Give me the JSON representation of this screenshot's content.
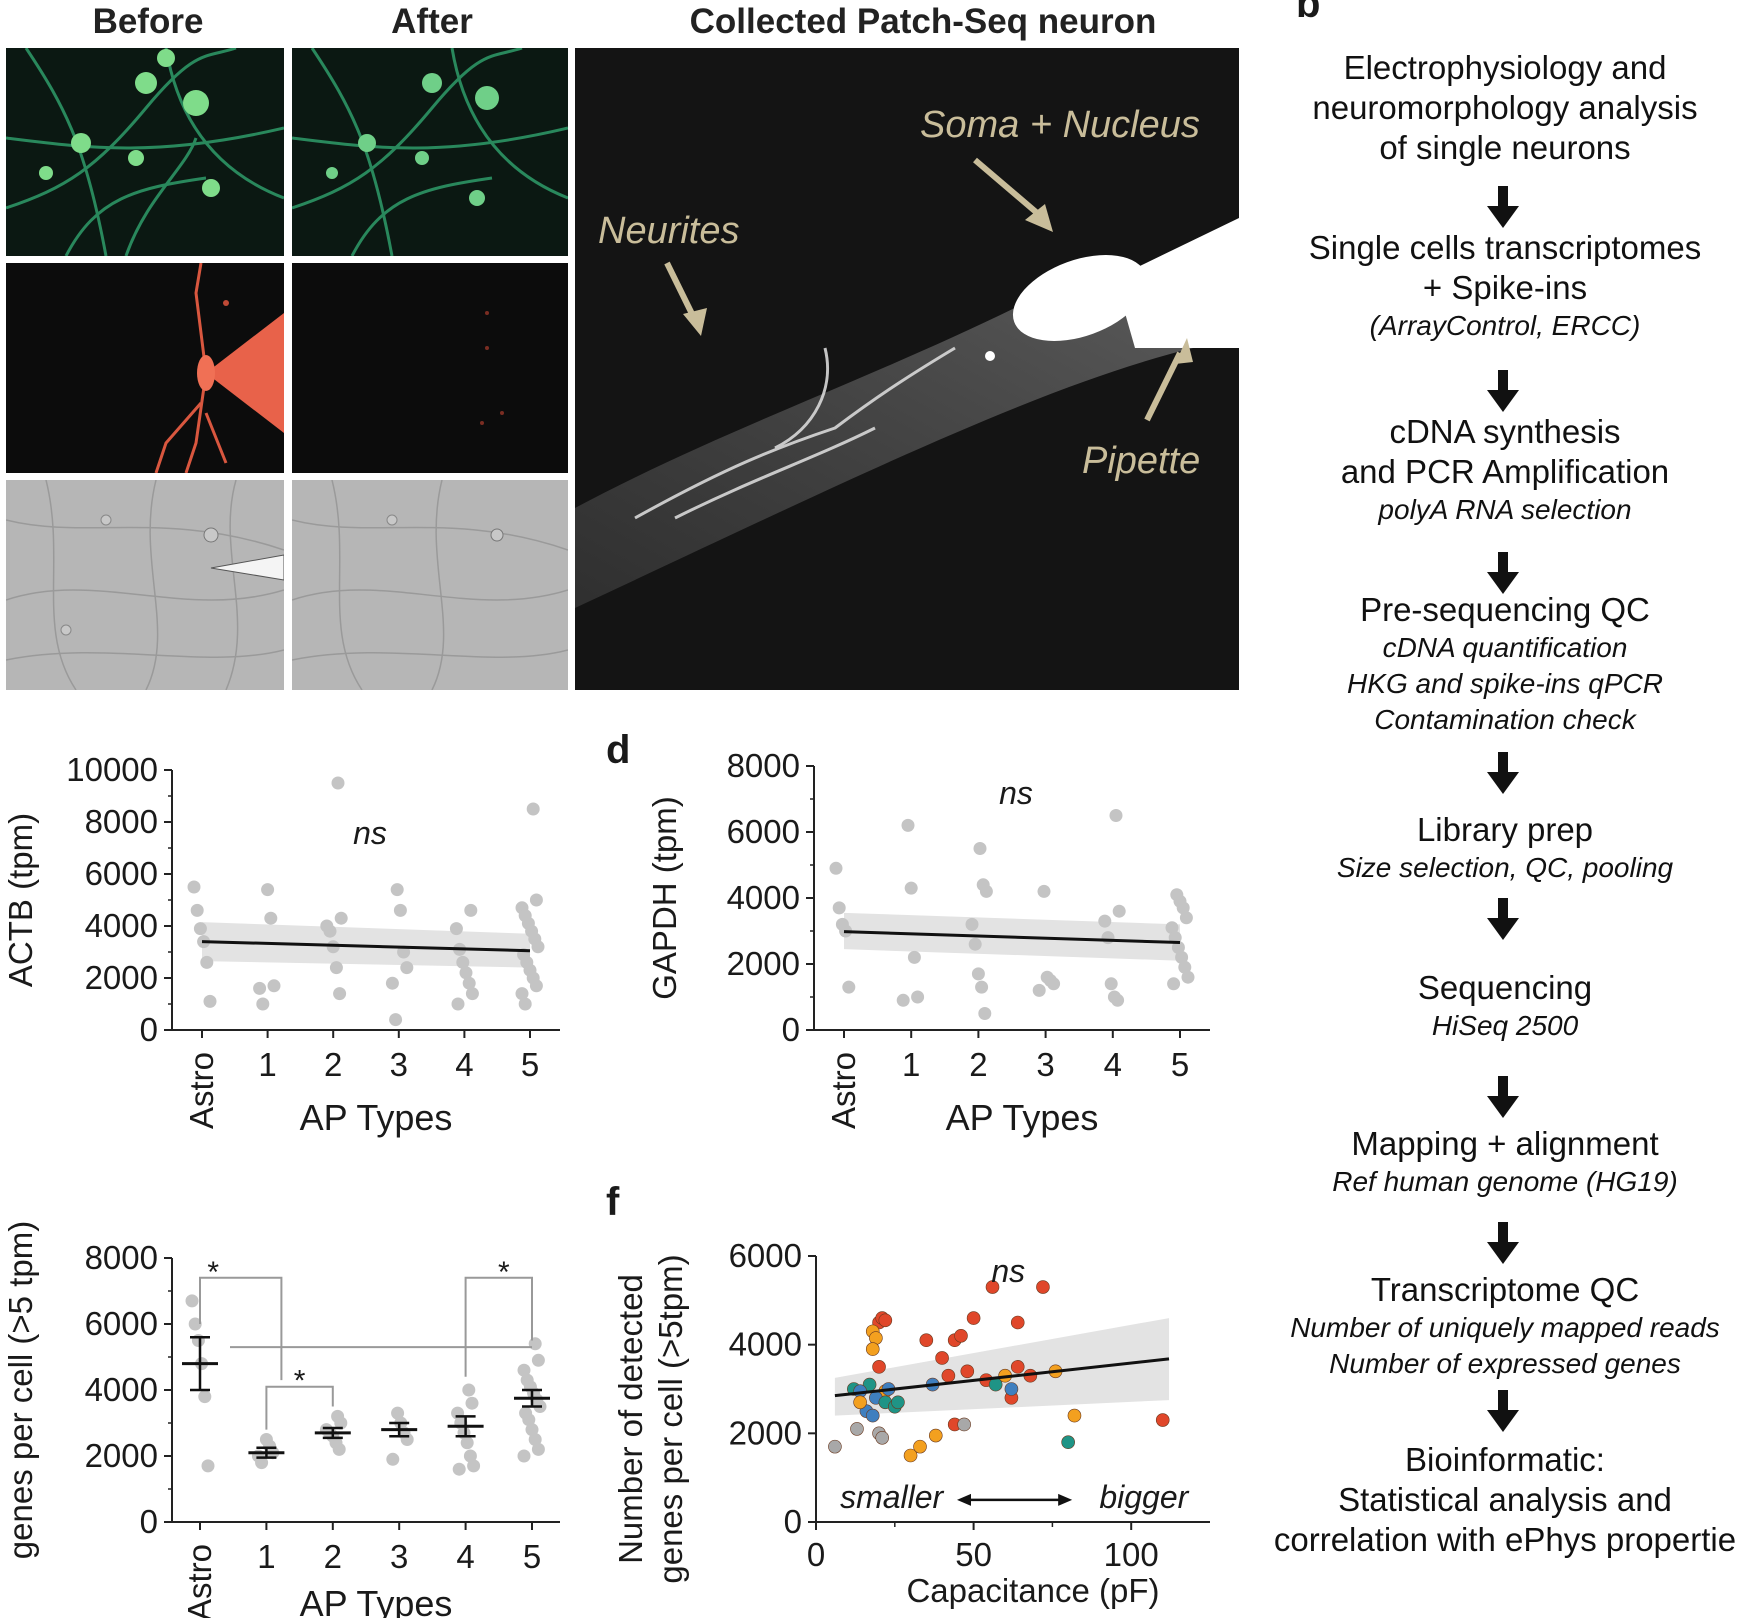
{
  "panel_a": {
    "col_before": "Before",
    "col_after": "After",
    "col_collected": "Collected Patch-Seq neuron",
    "annot_soma": "Soma + Nucleus",
    "annot_neurites": "Neurites",
    "annot_pipette": "Pipette",
    "colors": {
      "green": "#3fbf7f",
      "red": "#e8624a",
      "annotation": "#c9bd9a"
    }
  },
  "panel_b": {
    "label": "b",
    "steps": [
      {
        "title_lines": [
          "Electrophysiology and",
          "neuromorphology analysis",
          "of single neurons"
        ],
        "sub_lines": []
      },
      {
        "title_lines": [
          "Single cells transcriptomes",
          "+ Spike-ins"
        ],
        "sub_lines": [
          "(ArrayControl, ERCC)"
        ]
      },
      {
        "title_lines": [
          "cDNA synthesis",
          "and PCR Amplification"
        ],
        "sub_lines": [
          "polyA RNA selection"
        ]
      },
      {
        "title_lines": [
          "Pre-sequencing QC"
        ],
        "sub_lines": [
          "cDNA quantification",
          "HKG and spike-ins qPCR",
          "Contamination check"
        ]
      },
      {
        "title_lines": [
          "Library prep"
        ],
        "sub_lines": [
          "Size selection, QC, pooling"
        ]
      },
      {
        "title_lines": [
          "Sequencing"
        ],
        "sub_lines": [
          "HiSeq 2500"
        ]
      },
      {
        "title_lines": [
          "Mapping + alignment"
        ],
        "sub_lines": [
          "Ref human genome (HG19)"
        ]
      },
      {
        "title_lines": [
          "Transcriptome QC"
        ],
        "sub_lines": [
          "Number of uniquely mapped reads",
          "Number of expressed genes"
        ]
      },
      {
        "title_lines": [
          "Bioinformatic:",
          "Statistical analysis and",
          "correlation with ePhys propertie"
        ],
        "sub_lines": []
      }
    ]
  },
  "chart_data": [
    {
      "id": "c",
      "type": "scatter",
      "ylabel": "ACTB (tpm)",
      "xlabel": "AP Types",
      "categories": [
        "Astro",
        "1",
        "2",
        "3",
        "4",
        "5"
      ],
      "ylim": [
        0,
        10000
      ],
      "yticks": [
        0,
        2000,
        4000,
        6000,
        8000,
        10000
      ],
      "annotation": "ns",
      "points": [
        [
          0,
          5500
        ],
        [
          0,
          4600
        ],
        [
          0,
          3900
        ],
        [
          0,
          3400
        ],
        [
          0,
          2600
        ],
        [
          0,
          1100
        ],
        [
          1,
          5400
        ],
        [
          1,
          4300
        ],
        [
          1,
          1700
        ],
        [
          1,
          1600
        ],
        [
          1,
          1000
        ],
        [
          2,
          9500
        ],
        [
          2,
          4300
        ],
        [
          2,
          4000
        ],
        [
          2,
          3800
        ],
        [
          2,
          3200
        ],
        [
          2,
          2400
        ],
        [
          2,
          1400
        ],
        [
          3,
          5400
        ],
        [
          3,
          4600
        ],
        [
          3,
          3000
        ],
        [
          3,
          2400
        ],
        [
          3,
          1800
        ],
        [
          3,
          400
        ],
        [
          4,
          4600
        ],
        [
          4,
          3900
        ],
        [
          4,
          3100
        ],
        [
          4,
          2600
        ],
        [
          4,
          2200
        ],
        [
          4,
          1800
        ],
        [
          4,
          1400
        ],
        [
          4,
          1000
        ],
        [
          5,
          8500
        ],
        [
          5,
          5000
        ],
        [
          5,
          4700
        ],
        [
          5,
          4400
        ],
        [
          5,
          4100
        ],
        [
          5,
          3800
        ],
        [
          5,
          3500
        ],
        [
          5,
          3200
        ],
        [
          5,
          2900
        ],
        [
          5,
          2600
        ],
        [
          5,
          2300
        ],
        [
          5,
          2000
        ],
        [
          5,
          1700
        ],
        [
          5,
          1400
        ],
        [
          5,
          1000
        ]
      ],
      "fit": {
        "y0": 3400,
        "y1": 3050,
        "band_start": [
          2650,
          4150
        ],
        "band_end": [
          2400,
          3700
        ]
      }
    },
    {
      "id": "d",
      "label": "d",
      "type": "scatter",
      "ylabel": "GAPDH (tpm)",
      "xlabel": "AP Types",
      "categories": [
        "Astro",
        "1",
        "2",
        "3",
        "4",
        "5"
      ],
      "ylim": [
        0,
        8000
      ],
      "yticks": [
        0,
        2000,
        4000,
        6000,
        8000
      ],
      "annotation": "ns",
      "points": [
        [
          0,
          4900
        ],
        [
          0,
          3700
        ],
        [
          0,
          3200
        ],
        [
          0,
          3000
        ],
        [
          0,
          1300
        ],
        [
          1,
          6200
        ],
        [
          1,
          4300
        ],
        [
          1,
          2200
        ],
        [
          1,
          1000
        ],
        [
          1,
          900
        ],
        [
          2,
          5500
        ],
        [
          2,
          4400
        ],
        [
          2,
          4200
        ],
        [
          2,
          3200
        ],
        [
          2,
          2600
        ],
        [
          2,
          1700
        ],
        [
          2,
          1300
        ],
        [
          2,
          500
        ],
        [
          3,
          4200
        ],
        [
          3,
          1600
        ],
        [
          3,
          1500
        ],
        [
          3,
          1400
        ],
        [
          3,
          1200
        ],
        [
          4,
          6500
        ],
        [
          4,
          3600
        ],
        [
          4,
          3300
        ],
        [
          4,
          2800
        ],
        [
          4,
          1400
        ],
        [
          4,
          1000
        ],
        [
          4,
          900
        ],
        [
          5,
          4100
        ],
        [
          5,
          3900
        ],
        [
          5,
          3700
        ],
        [
          5,
          3400
        ],
        [
          5,
          3100
        ],
        [
          5,
          2800
        ],
        [
          5,
          2500
        ],
        [
          5,
          2200
        ],
        [
          5,
          1900
        ],
        [
          5,
          1600
        ],
        [
          5,
          1400
        ]
      ],
      "fit": {
        "y0": 2980,
        "y1": 2650,
        "band_start": [
          2450,
          3550
        ],
        "band_end": [
          2100,
          3200
        ]
      }
    },
    {
      "id": "e",
      "type": "scatter",
      "ylabel": "genes per cell (>5 tpm)",
      "xlabel": "AP Types",
      "categories": [
        "Astro",
        "1",
        "2",
        "3",
        "4",
        "5"
      ],
      "ylim": [
        0,
        8000
      ],
      "yticks": [
        0,
        2000,
        4000,
        6000,
        8000
      ],
      "significance": "*",
      "means": [
        4800,
        2100,
        2700,
        2800,
        2900,
        3750
      ],
      "sems": [
        800,
        150,
        150,
        200,
        300,
        250
      ],
      "points": [
        [
          0,
          6700
        ],
        [
          0,
          6000
        ],
        [
          0,
          5500
        ],
        [
          0,
          4800
        ],
        [
          0,
          3800
        ],
        [
          0,
          1700
        ],
        [
          1,
          2500
        ],
        [
          1,
          2300
        ],
        [
          1,
          2100
        ],
        [
          1,
          2000
        ],
        [
          1,
          1800
        ],
        [
          2,
          3200
        ],
        [
          2,
          3000
        ],
        [
          2,
          2800
        ],
        [
          2,
          2700
        ],
        [
          2,
          2600
        ],
        [
          2,
          2400
        ],
        [
          2,
          2200
        ],
        [
          3,
          3300
        ],
        [
          3,
          3000
        ],
        [
          3,
          2700
        ],
        [
          3,
          2500
        ],
        [
          3,
          1900
        ],
        [
          4,
          4000
        ],
        [
          4,
          3600
        ],
        [
          4,
          3300
        ],
        [
          4,
          3000
        ],
        [
          4,
          2700
        ],
        [
          4,
          2400
        ],
        [
          4,
          2000
        ],
        [
          4,
          1700
        ],
        [
          4,
          1600
        ],
        [
          5,
          5400
        ],
        [
          5,
          4900
        ],
        [
          5,
          4600
        ],
        [
          5,
          4300
        ],
        [
          5,
          4100
        ],
        [
          5,
          3900
        ],
        [
          5,
          3700
        ],
        [
          5,
          3500
        ],
        [
          5,
          3300
        ],
        [
          5,
          3100
        ],
        [
          5,
          2800
        ],
        [
          5,
          2500
        ],
        [
          5,
          2200
        ],
        [
          5,
          2000
        ]
      ]
    },
    {
      "id": "f",
      "label": "f",
      "type": "scatter",
      "ylabel_lines": [
        "Number of detected",
        "genes per cell (>5tpm)"
      ],
      "xlabel": "Capacitance (pF)",
      "xlim": [
        0,
        125
      ],
      "xticks": [
        0,
        50,
        100
      ],
      "ylim": [
        0,
        6000
      ],
      "yticks": [
        0,
        2000,
        4000,
        6000
      ],
      "annotation": "ns",
      "annot_smaller": "smaller",
      "annot_bigger": "bigger",
      "colors": {
        "red": "#e0472a",
        "orange": "#f3a01f",
        "teal": "#1f9486",
        "blue": "#3f7fbf",
        "grey": "#a8a8a8"
      },
      "points": [
        [
          20,
          4500
        ],
        [
          21,
          4600
        ],
        [
          22,
          4550
        ],
        [
          18,
          4300
        ],
        [
          19,
          4150
        ],
        [
          18,
          3900
        ],
        [
          20,
          3500
        ],
        [
          17,
          3100
        ],
        [
          22,
          2950
        ],
        [
          19,
          2800
        ],
        [
          22,
          2700
        ],
        [
          12,
          3000
        ],
        [
          14,
          2950
        ],
        [
          16,
          2500
        ],
        [
          18,
          2400
        ],
        [
          13,
          2100
        ],
        [
          20,
          2000
        ],
        [
          21,
          1900
        ],
        [
          6,
          1700
        ],
        [
          25,
          2600
        ],
        [
          14,
          2700
        ],
        [
          35,
          4100
        ],
        [
          40,
          3700
        ],
        [
          44,
          4100
        ],
        [
          46,
          4200
        ],
        [
          50,
          4600
        ],
        [
          56,
          5300
        ],
        [
          64,
          4500
        ],
        [
          72,
          5300
        ],
        [
          37,
          3100
        ],
        [
          42,
          3300
        ],
        [
          48,
          3400
        ],
        [
          54,
          3200
        ],
        [
          60,
          3300
        ],
        [
          62,
          2800
        ],
        [
          64,
          3500
        ],
        [
          33,
          1700
        ],
        [
          30,
          1500
        ],
        [
          38,
          1950
        ],
        [
          44,
          2200
        ],
        [
          76,
          3400
        ],
        [
          82,
          2400
        ],
        [
          110,
          2300
        ],
        [
          57,
          3100
        ],
        [
          68,
          3300
        ],
        [
          80,
          1800
        ],
        [
          26,
          2700
        ],
        [
          23,
          3000
        ],
        [
          47,
          2200
        ],
        [
          62,
          3000
        ]
      ],
      "point_colors": [
        "red",
        "red",
        "red",
        "orange",
        "orange",
        "orange",
        "red",
        "teal",
        "orange",
        "blue",
        "teal",
        "teal",
        "blue",
        "blue",
        "blue",
        "grey",
        "grey",
        "grey",
        "grey",
        "teal",
        "orange",
        "red",
        "red",
        "red",
        "red",
        "red",
        "red",
        "red",
        "red",
        "blue",
        "red",
        "red",
        "red",
        "orange",
        "red",
        "red",
        "orange",
        "orange",
        "orange",
        "red",
        "orange",
        "orange",
        "red",
        "teal",
        "red",
        "teal",
        "teal",
        "blue",
        "grey",
        "blue"
      ],
      "fit": {
        "x0": 6,
        "y0": 2850,
        "x1": 112,
        "y1": 3680,
        "band_start": [
          2400,
          3250
        ],
        "band_end": [
          2750,
          4600
        ]
      }
    }
  ]
}
